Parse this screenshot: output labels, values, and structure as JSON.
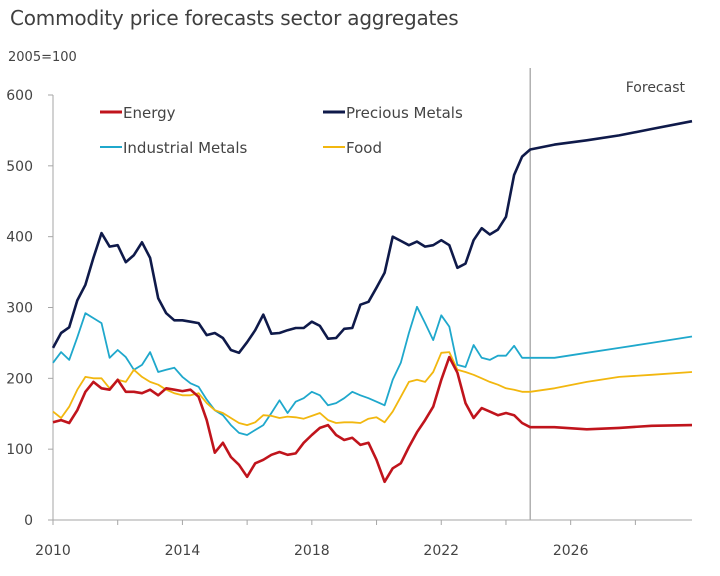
{
  "chart_data": {
    "type": "line",
    "title": "Commodity price forecasts sector aggregates",
    "ylabel": "2005=100",
    "xlabel": "",
    "ylim": [
      0,
      600
    ],
    "xlim": [
      2010,
      2029.75
    ],
    "yticks": [
      0,
      100,
      200,
      300,
      400,
      500,
      600
    ],
    "xticks": [
      2010,
      2012,
      2014,
      2016,
      2018,
      2020,
      2022,
      2024,
      2026,
      2028
    ],
    "xtick_labels": [
      "2010",
      "",
      "2014",
      "",
      "2018",
      "",
      "2022",
      "",
      "2026",
      ""
    ],
    "grid": false,
    "legend_placement": "top-left, two columns",
    "forecast_start": 2024.75,
    "forecast_label": "Forecast",
    "x": [
      2010,
      2010.25,
      2010.5,
      2010.75,
      2011,
      2011.25,
      2011.5,
      2011.75,
      2012,
      2012.25,
      2012.5,
      2012.75,
      2013,
      2013.25,
      2013.5,
      2013.75,
      2014,
      2014.25,
      2014.5,
      2014.75,
      2015,
      2015.25,
      2015.5,
      2015.75,
      2016,
      2016.25,
      2016.5,
      2016.75,
      2017,
      2017.25,
      2017.5,
      2017.75,
      2018,
      2018.25,
      2018.5,
      2018.75,
      2019,
      2019.25,
      2019.5,
      2019.75,
      2020,
      2020.25,
      2020.5,
      2020.75,
      2021,
      2021.25,
      2021.5,
      2021.75,
      2022,
      2022.25,
      2022.5,
      2022.75,
      2023,
      2023.25,
      2023.5,
      2023.75,
      2024,
      2024.25,
      2024.5,
      2024.75,
      2025.5,
      2026.5,
      2027.5,
      2028.5,
      2029.75
    ],
    "series": [
      {
        "name": "Energy",
        "color": "#c0141c",
        "values": [
          138,
          141,
          137,
          155,
          181,
          195,
          186,
          184,
          198,
          181,
          181,
          179,
          184,
          176,
          186,
          184,
          182,
          184,
          174,
          141,
          95,
          109,
          89,
          78,
          61,
          80,
          85,
          92,
          96,
          92,
          94,
          109,
          120,
          130,
          134,
          120,
          113,
          116,
          106,
          109,
          85,
          54,
          73,
          80,
          103,
          124,
          141,
          160,
          198,
          230,
          208,
          165,
          144,
          158,
          153,
          148,
          151,
          148,
          137,
          131,
          131,
          128,
          130,
          133,
          134
        ]
      },
      {
        "name": "Precious Metals",
        "color": "#0f1a4a",
        "values": [
          243,
          264,
          272,
          310,
          332,
          370,
          405,
          386,
          388,
          364,
          374,
          392,
          370,
          313,
          292,
          282,
          282,
          280,
          278,
          261,
          264,
          257,
          240,
          236,
          251,
          268,
          290,
          263,
          264,
          268,
          271,
          271,
          280,
          274,
          256,
          257,
          270,
          271,
          304,
          308,
          328,
          349,
          400,
          394,
          388,
          393,
          386,
          388,
          395,
          388,
          356,
          362,
          395,
          412,
          403,
          410,
          428,
          487,
          513,
          523,
          530,
          536,
          543,
          552,
          563
        ]
      },
      {
        "name": "Industrial Metals",
        "color": "#1fa8cc",
        "values": [
          222,
          237,
          226,
          258,
          292,
          285,
          278,
          229,
          240,
          230,
          212,
          219,
          237,
          209,
          212,
          215,
          202,
          193,
          188,
          170,
          155,
          148,
          134,
          123,
          120,
          127,
          134,
          151,
          169,
          151,
          167,
          172,
          181,
          176,
          162,
          165,
          172,
          181,
          176,
          172,
          167,
          162,
          198,
          222,
          264,
          301,
          278,
          254,
          289,
          273,
          219,
          216,
          247,
          229,
          226,
          232,
          232,
          246,
          229,
          229,
          229,
          236,
          243,
          250,
          259
        ]
      },
      {
        "name": "Food",
        "color": "#f2b70f",
        "values": [
          153,
          144,
          160,
          184,
          202,
          200,
          200,
          186,
          198,
          195,
          212,
          202,
          195,
          191,
          184,
          179,
          176,
          176,
          179,
          165,
          155,
          151,
          144,
          137,
          134,
          138,
          148,
          147,
          144,
          146,
          145,
          143,
          147,
          151,
          141,
          137,
          138,
          138,
          137,
          143,
          145,
          138,
          153,
          174,
          195,
          198,
          195,
          209,
          236,
          237,
          212,
          209,
          205,
          200,
          195,
          191,
          186,
          184,
          181,
          181,
          186,
          195,
          202,
          205,
          209
        ]
      }
    ]
  }
}
